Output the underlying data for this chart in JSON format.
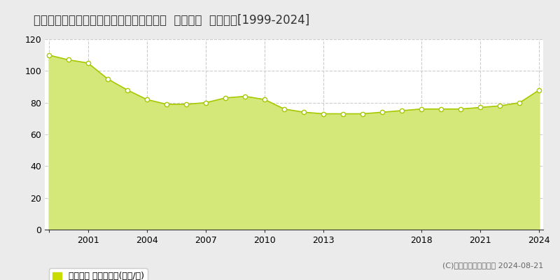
{
  "title": "大阪府大阪市城東区野江２丁目３９番２外  地価公示  地価推移[1999-2024]",
  "years": [
    1999,
    2000,
    2001,
    2002,
    2003,
    2004,
    2005,
    2006,
    2007,
    2008,
    2009,
    2010,
    2011,
    2012,
    2013,
    2014,
    2015,
    2016,
    2017,
    2018,
    2019,
    2020,
    2021,
    2022,
    2023,
    2024
  ],
  "values": [
    110,
    107,
    105,
    95,
    88,
    82,
    79,
    79,
    80,
    83,
    84,
    82,
    76,
    74,
    73,
    73,
    73,
    74,
    75,
    76,
    76,
    76,
    77,
    78,
    80,
    88
  ],
  "line_color": "#a8c800",
  "fill_color": "#d4e87a",
  "marker_color": "#ffffff",
  "marker_edge_color": "#a8c800",
  "background_color": "#ebebeb",
  "plot_bg_color": "#ffffff",
  "grid_color": "#cccccc",
  "ylim": [
    0,
    120
  ],
  "yticks": [
    0,
    20,
    40,
    60,
    80,
    100,
    120
  ],
  "xticks": [
    1999,
    2001,
    2004,
    2007,
    2010,
    2013,
    2018,
    2021,
    2024
  ],
  "xtick_labels": [
    "",
    "2001",
    "2004",
    "2007",
    "2010",
    "2013",
    "2018",
    "2021",
    "2024"
  ],
  "legend_label": "地価公示 平均坪単価(万円/坪)",
  "legend_color": "#c8dc00",
  "copyright_text": "(C)土地価格ドットコム 2024-08-21",
  "title_fontsize": 12,
  "axis_fontsize": 9,
  "legend_fontsize": 9
}
